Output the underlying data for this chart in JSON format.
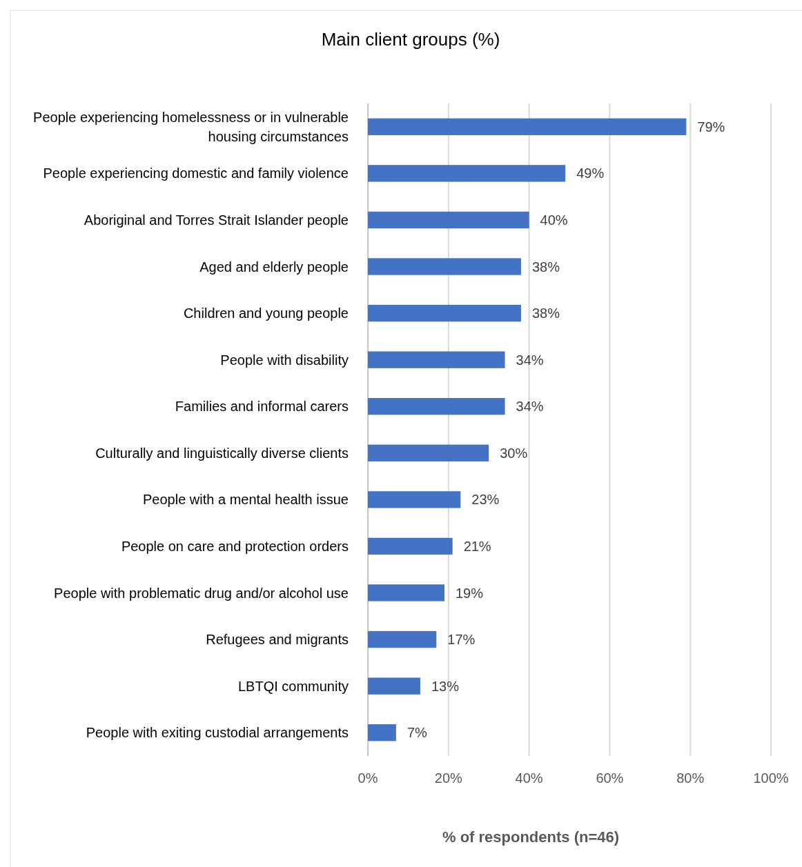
{
  "chart_data": {
    "type": "bar",
    "orientation": "horizontal",
    "title": "Main client groups (%)",
    "xlabel": "% of respondents (n=46)",
    "categories": [
      "People experiencing homelessness or in vulnerable housing circumstances",
      "People experiencing domestic and family violence",
      "Aboriginal and Torres Strait Islander people",
      "Aged and elderly people",
      "Children and young people",
      "People with disability",
      "Families and informal carers",
      "Culturally and linguistically diverse clients",
      "People with a mental health issue",
      "People on care and protection orders",
      "People with problematic drug and/or alcohol use",
      "Refugees and migrants",
      "LBTQI community",
      "People with exiting custodial arrangements"
    ],
    "values": [
      79,
      49,
      40,
      38,
      38,
      34,
      34,
      30,
      23,
      21,
      19,
      17,
      13,
      7
    ],
    "value_labels": [
      "79%",
      "49%",
      "40%",
      "38%",
      "38%",
      "34%",
      "34%",
      "30%",
      "23%",
      "21%",
      "19%",
      "17%",
      "13%",
      "7%"
    ],
    "color": "#4472c4",
    "xlim": [
      0,
      100
    ],
    "xticks": [
      {
        "value": 0,
        "label": "0%"
      },
      {
        "value": 20,
        "label": "20%"
      },
      {
        "value": 40,
        "label": "40%"
      },
      {
        "value": 60,
        "label": "60%"
      },
      {
        "value": 80,
        "label": "80%"
      },
      {
        "value": 100,
        "label": "100%"
      }
    ],
    "grid": "x"
  }
}
